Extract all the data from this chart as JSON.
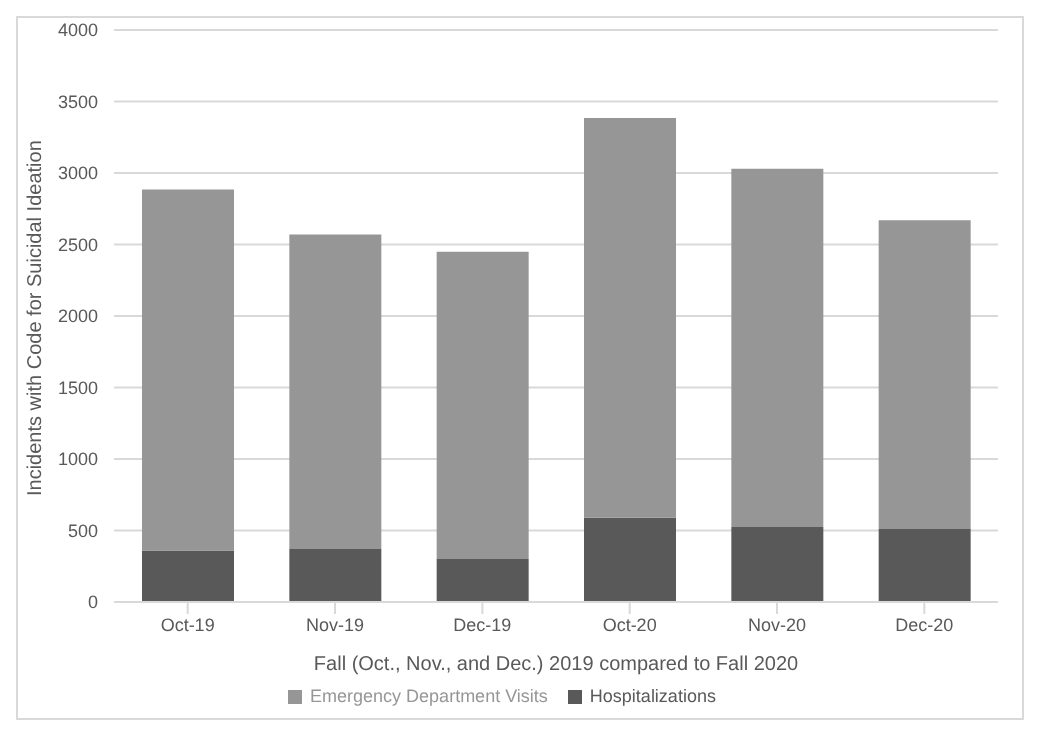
{
  "chart_data": {
    "type": "bar",
    "stacked": true,
    "xlabel": "Fall (Oct., Nov., and Dec.) 2019 compared to Fall 2020",
    "ylabel": "Incidents with Code for Suicidal Ideation",
    "categories": [
      "Oct-19",
      "Nov-19",
      "Dec-19",
      "Oct-20",
      "Nov-20",
      "Dec-20"
    ],
    "series": [
      {
        "name": "Hospitalizations",
        "color": "#595959",
        "values": [
          360,
          370,
          300,
          590,
          525,
          510
        ]
      },
      {
        "name": "Emergency Department Visits",
        "color": "#969696",
        "values": [
          2525,
          2200,
          2150,
          2795,
          2505,
          2160
        ]
      }
    ],
    "ylim": [
      0,
      4000
    ],
    "yticks": [
      0,
      500,
      1000,
      1500,
      2000,
      2500,
      3000,
      3500,
      4000
    ],
    "grid": "y",
    "legend": "bottom"
  }
}
